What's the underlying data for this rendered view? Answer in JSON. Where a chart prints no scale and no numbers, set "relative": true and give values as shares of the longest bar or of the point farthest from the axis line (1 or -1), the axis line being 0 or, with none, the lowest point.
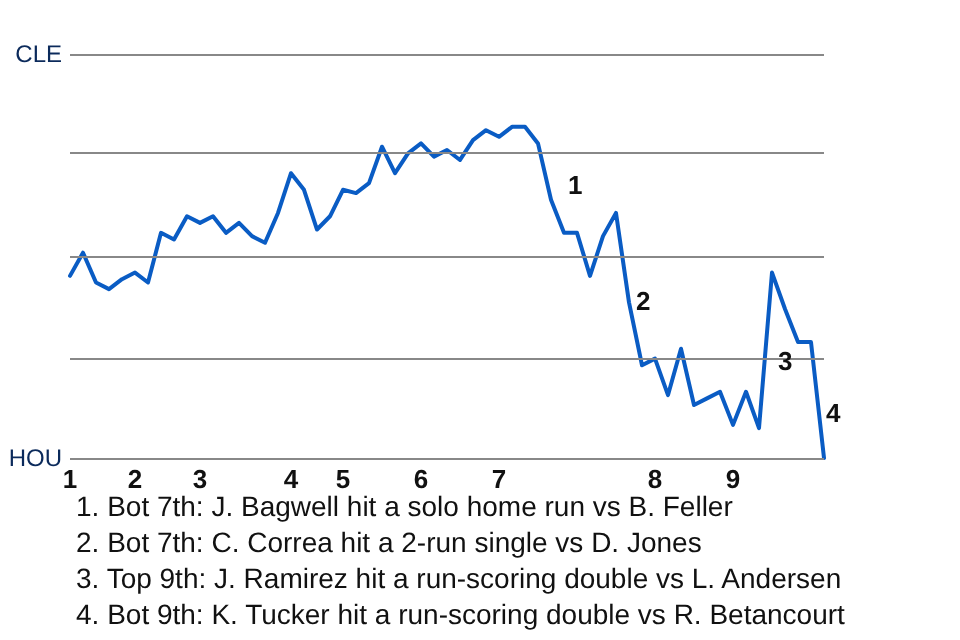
{
  "chart_data": {
    "type": "line",
    "relative": true,
    "categories": [
      "1",
      null,
      null,
      null,
      null,
      "2",
      null,
      null,
      null,
      null,
      "3",
      null,
      null,
      null,
      null,
      null,
      null,
      "4",
      null,
      null,
      null,
      "5",
      null,
      null,
      null,
      null,
      null,
      "6",
      null,
      null,
      null,
      null,
      null,
      "7",
      null,
      null,
      null,
      null,
      null,
      null,
      null,
      null,
      null,
      null,
      null,
      "8",
      null,
      null,
      null,
      null,
      null,
      "9",
      null,
      null,
      null,
      null,
      null,
      null,
      null
    ],
    "series": [
      {
        "color": "#0a5cc4",
        "values": [
          0.55,
          0.62,
          0.53,
          0.51,
          0.54,
          0.56,
          0.53,
          0.68,
          0.66,
          0.73,
          0.71,
          0.73,
          0.68,
          0.71,
          0.67,
          0.65,
          0.74,
          0.86,
          0.81,
          0.69,
          0.73,
          0.81,
          0.8,
          0.83,
          0.94,
          0.86,
          0.92,
          0.95,
          0.91,
          0.93,
          0.9,
          0.96,
          0.99,
          0.97,
          1,
          1,
          0.95,
          0.78,
          0.68,
          0.68,
          0.55,
          0.67,
          0.74,
          0.47,
          0.28,
          0.3,
          0.19,
          0.33,
          0.16,
          0.18,
          0.2,
          0.1,
          0.2,
          0.09,
          0.56,
          0.45,
          0.35,
          0.35,
          0
        ],
        "name": null
      }
    ],
    "ref_lines": [
      {
        "axis": "y",
        "value": 0,
        "label": "HOU",
        "color": "#888888"
      },
      {
        "axis": "y",
        "value": 0.305,
        "label": null,
        "color": "#888888"
      },
      {
        "axis": "y",
        "value": 0.61,
        "label": null,
        "color": "#888888"
      },
      {
        "axis": "y",
        "value": 0.915,
        "label": null,
        "color": "#888888"
      },
      {
        "axis": "y",
        "value": 1.22,
        "label": "CLE",
        "color": "#888888"
      }
    ],
    "line_style": "solid",
    "marker": "none",
    "annotations": [
      "1",
      "2",
      "3",
      "4",
      "1. Bot 7th: J. Bagwell hit a solo home run vs B. Feller",
      "2. Bot 7th: C. Correa hit a 2-run single vs D. Jones",
      "3. Top 9th: J. Ramirez hit a run-scoring double vs L. Andersen",
      "4. Bot 9th: K. Tucker hit a run-scoring double vs R. Betancourt"
    ]
  }
}
